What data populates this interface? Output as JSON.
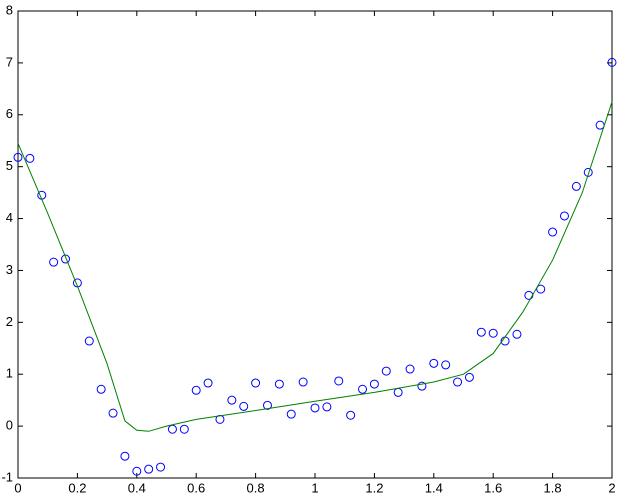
{
  "chart_data": {
    "type": "scatter",
    "xlim": [
      0,
      2
    ],
    "xticks": [
      0,
      0.2,
      0.4,
      0.6,
      0.8,
      1,
      1.2,
      1.4,
      1.6,
      1.8,
      2
    ],
    "ylim": [
      -1,
      8
    ],
    "yticks": [
      -1,
      0,
      1,
      2,
      3,
      4,
      5,
      6,
      7,
      8
    ],
    "grid": false,
    "series": [
      {
        "type": "scatter",
        "color": "#0000ff",
        "x": [
          0,
          0.04,
          0.08,
          0.12,
          0.16,
          0.2,
          0.24,
          0.28,
          0.32,
          0.36,
          0.4,
          0.44,
          0.48,
          0.52,
          0.56,
          0.6,
          0.64,
          0.68,
          0.72,
          0.76,
          0.8,
          0.84,
          0.88,
          0.92,
          0.96,
          1,
          1.04,
          1.08,
          1.12,
          1.16,
          1.2,
          1.24,
          1.28,
          1.32,
          1.36,
          1.4,
          1.44,
          1.48,
          1.52,
          1.56,
          1.6,
          1.64,
          1.68,
          1.72,
          1.76,
          1.8,
          1.84,
          1.88,
          1.92,
          1.96,
          2
        ],
        "values": [
          5.18,
          5.16,
          4.45,
          3.16,
          3.22,
          2.76,
          1.64,
          0.71,
          0.25,
          -0.58,
          -0.87,
          -0.83,
          -0.79,
          -0.06,
          -0.06,
          0.69,
          0.83,
          0.13,
          0.5,
          0.38,
          0.83,
          0.4,
          0.81,
          0.23,
          0.85,
          0.35,
          0.37,
          0.87,
          0.21,
          0.71,
          0.81,
          1.06,
          0.65,
          1.1,
          0.77,
          1.21,
          1.18,
          0.85,
          0.94,
          1.81,
          1.79,
          1.64,
          1.77,
          2.52,
          2.64,
          3.74,
          4.05,
          4.62,
          4.89,
          5.8,
          7.01
        ]
      },
      {
        "type": "line",
        "color": "#008000",
        "x": [
          0,
          0.1,
          0.2,
          0.3,
          0.36,
          0.4,
          0.44,
          0.5,
          0.6,
          0.8,
          1,
          1.2,
          1.4,
          1.5,
          1.6,
          1.7,
          1.8,
          1.9,
          2
        ],
        "values": [
          5.45,
          4.1,
          2.7,
          1.2,
          0.1,
          -0.08,
          -0.1,
          0.0,
          0.13,
          0.3,
          0.48,
          0.65,
          0.85,
          1.0,
          1.4,
          2.2,
          3.2,
          4.5,
          6.25
        ]
      }
    ]
  }
}
